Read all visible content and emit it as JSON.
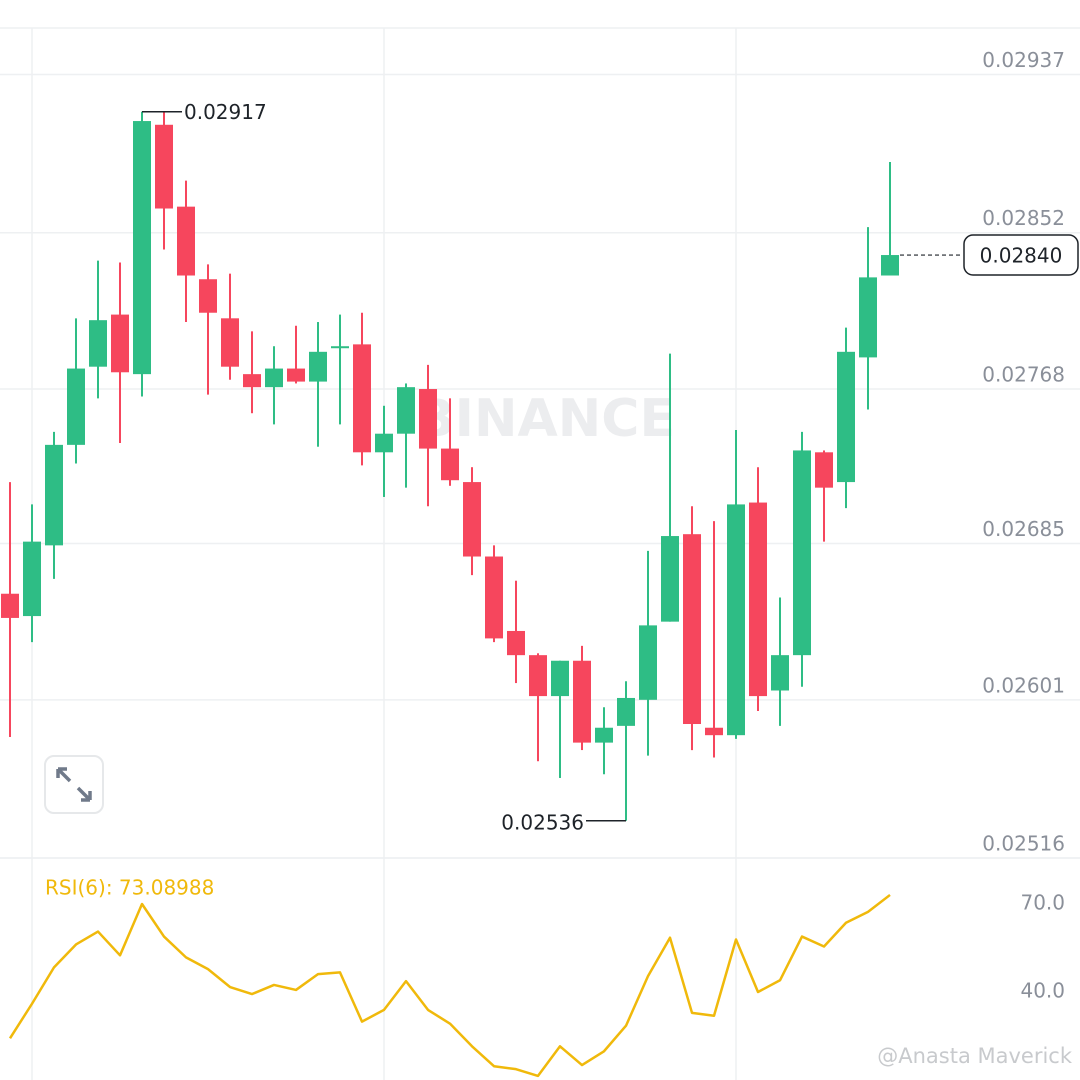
{
  "chart_data": [
    {
      "type": "candlestick",
      "open": [
        0.02658,
        0.02646,
        0.02684,
        0.02738,
        0.0278,
        0.02808,
        0.02776,
        0.0291,
        0.02866,
        0.02827,
        0.02806,
        0.02776,
        0.02769,
        0.02779,
        0.02772,
        0.0279,
        0.02792,
        0.02734,
        0.02744,
        0.02768,
        0.02736,
        0.02718,
        0.02678,
        0.02638,
        0.02625,
        0.02603,
        0.02622,
        0.02578,
        0.02587,
        0.02601,
        0.02643,
        0.0269,
        0.02586,
        0.02582,
        0.02707,
        0.02606,
        0.02625,
        0.02734,
        0.02718,
        0.02785,
        0.02829
      ],
      "high": [
        0.02718,
        0.02706,
        0.02745,
        0.02806,
        0.02837,
        0.02836,
        0.02917,
        0.02917,
        0.0288,
        0.02835,
        0.0283,
        0.02799,
        0.02791,
        0.02802,
        0.02804,
        0.02808,
        0.02809,
        0.02759,
        0.02771,
        0.02781,
        0.02763,
        0.02726,
        0.02684,
        0.02665,
        0.02626,
        0.02622,
        0.0263,
        0.02597,
        0.02611,
        0.02681,
        0.02787,
        0.02705,
        0.02697,
        0.02746,
        0.02726,
        0.02656,
        0.02745,
        0.02735,
        0.02801,
        0.02855,
        0.0289
      ],
      "low": [
        0.02581,
        0.02632,
        0.02666,
        0.02728,
        0.02763,
        0.02739,
        0.02764,
        0.02843,
        0.02804,
        0.02765,
        0.02773,
        0.02755,
        0.02749,
        0.02771,
        0.02737,
        0.02749,
        0.02727,
        0.0271,
        0.02715,
        0.02705,
        0.02716,
        0.02668,
        0.02632,
        0.0261,
        0.02568,
        0.02559,
        0.02574,
        0.02561,
        0.02536,
        0.02571,
        0.02643,
        0.02574,
        0.0257,
        0.0258,
        0.02595,
        0.02587,
        0.02608,
        0.02686,
        0.02704,
        0.02757,
        0.02829
      ],
      "close": [
        0.02645,
        0.02686,
        0.02738,
        0.02779,
        0.02805,
        0.02777,
        0.02912,
        0.02865,
        0.02829,
        0.02809,
        0.0278,
        0.02769,
        0.02779,
        0.02772,
        0.02788,
        0.02791,
        0.02734,
        0.02744,
        0.02769,
        0.02736,
        0.02719,
        0.02678,
        0.02634,
        0.02625,
        0.02603,
        0.02622,
        0.02578,
        0.02586,
        0.02602,
        0.02641,
        0.02689,
        0.02588,
        0.02582,
        0.02706,
        0.02603,
        0.02625,
        0.02735,
        0.02715,
        0.02788,
        0.02828,
        0.0284
      ],
      "up_color": "#2ebd85",
      "down_color": "#f6465d",
      "ylim": [
        0.02516,
        0.02962
      ],
      "yticks": [
        0.02937,
        0.02852,
        0.02768,
        0.02685,
        0.02601,
        0.02516
      ],
      "grid": true,
      "current_price_label": "0.02840"
    },
    {
      "type": "line",
      "title": "RSI(6): 73.08988",
      "color": "#f0b90b",
      "values": [
        24.2,
        36.0,
        48.4,
        56.2,
        60.6,
        52.5,
        70.0,
        58.9,
        51.8,
        47.8,
        41.7,
        39.3,
        42.4,
        40.7,
        46.1,
        46.7,
        29.9,
        33.9,
        43.7,
        33.9,
        29.2,
        21.5,
        14.7,
        13.7,
        11.4,
        21.5,
        15.1,
        19.8,
        28.5,
        45.4,
        58.5,
        32.9,
        31.9,
        57.9,
        40.0,
        44.0,
        58.9,
        55.5,
        63.6,
        67.3,
        73.08988
      ],
      "ylim": [
        10,
        85
      ],
      "yticks": [
        {
          "value": 70,
          "label": "70.0"
        },
        {
          "value": 40,
          "label": "40.0"
        }
      ]
    }
  ],
  "watermark": "BINANCE",
  "credit": "@Anasta Maverick"
}
